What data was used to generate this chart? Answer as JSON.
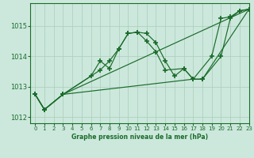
{
  "title": "Graphe pression niveau de la mer (hPa)",
  "background_color": "#cce8dc",
  "grid_color": "#aaccbb",
  "line_color": "#1a6b2a",
  "xlim": [
    -0.5,
    23
  ],
  "ylim": [
    1011.8,
    1015.75
  ],
  "yticks": [
    1012,
    1013,
    1014,
    1015
  ],
  "xticks": [
    0,
    1,
    2,
    3,
    4,
    5,
    6,
    7,
    8,
    9,
    10,
    11,
    12,
    13,
    14,
    15,
    16,
    17,
    18,
    19,
    20,
    21,
    22,
    23
  ],
  "series": [
    {
      "x": [
        0,
        1,
        3,
        23
      ],
      "y": [
        1012.75,
        1012.25,
        1012.75,
        1015.55
      ]
    },
    {
      "x": [
        0,
        1,
        3,
        17,
        18,
        23
      ],
      "y": [
        1012.75,
        1012.25,
        1012.75,
        1013.25,
        1013.25,
        1015.55
      ]
    },
    {
      "x": [
        0,
        1,
        3,
        7,
        8,
        9,
        10,
        11,
        12,
        13,
        14,
        15,
        16,
        17,
        18,
        20,
        21,
        22,
        23
      ],
      "y": [
        1012.75,
        1012.25,
        1012.75,
        1013.55,
        1013.85,
        1014.25,
        1014.75,
        1014.8,
        1014.75,
        1014.45,
        1013.85,
        1013.35,
        1013.6,
        1013.25,
        1013.25,
        1014.0,
        1015.25,
        1015.5,
        1015.55
      ]
    },
    {
      "x": [
        0,
        1,
        3,
        6,
        7,
        8,
        9,
        10,
        11,
        12,
        13,
        14,
        16,
        17,
        19,
        20,
        21,
        22,
        23
      ],
      "y": [
        1012.75,
        1012.25,
        1012.75,
        1013.35,
        1013.85,
        1013.6,
        1014.25,
        1014.75,
        1014.8,
        1014.5,
        1014.15,
        1013.55,
        1013.6,
        1013.25,
        1014.0,
        1015.25,
        1015.3,
        1015.5,
        1015.55
      ]
    }
  ]
}
